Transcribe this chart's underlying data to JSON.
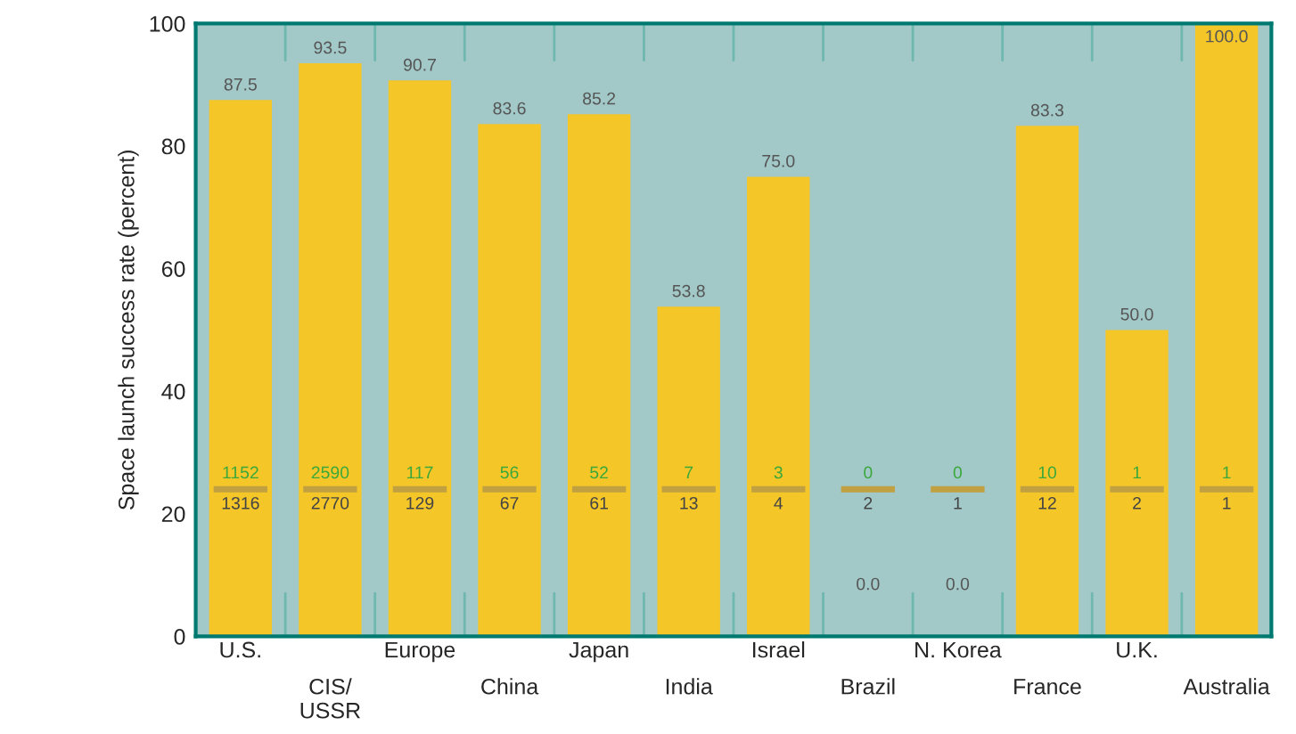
{
  "chart_data": {
    "type": "bar",
    "ylabel": "Space launch success rate (percent)",
    "categories": [
      "U.S.",
      "CIS/\nUSSR",
      "Europe",
      "China",
      "Japan",
      "India",
      "Israel",
      "Brazil",
      "N. Korea",
      "France",
      "U.K.",
      "Australia"
    ],
    "values": [
      87.5,
      93.5,
      90.7,
      83.6,
      85.2,
      53.8,
      75.0,
      0.0,
      0.0,
      83.3,
      50.0,
      100.0
    ],
    "value_labels": [
      "87.5",
      "93.5",
      "90.7",
      "83.6",
      "85.2",
      "53.8",
      "75.0",
      "0.0",
      "0.0",
      "83.3",
      "50.0",
      "100.0"
    ],
    "color": "#f5c628",
    "ylim": [
      0,
      100
    ],
    "yticks": [
      0,
      20,
      40,
      60,
      80,
      100
    ],
    "grid": false,
    "legend": false,
    "annotations": [
      "1152",
      "1316",
      "2590",
      "2770",
      "117",
      "129",
      "56",
      "67",
      "52",
      "61",
      "7",
      "13",
      "3",
      "4",
      "0",
      "2",
      "0",
      "1",
      "10",
      "12",
      "1",
      "2",
      "1",
      "1"
    ]
  }
}
